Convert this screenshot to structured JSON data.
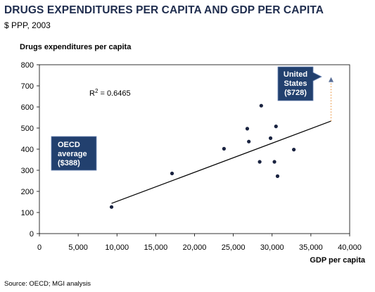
{
  "title": "DRUGS EXPENDITURES PER CAPITA AND GDP PER CAPITA",
  "subtitle": "$ PPP, 2003",
  "source": "Source: OECD; MGI analysis",
  "colors": {
    "title": "#1f2d4e",
    "callout": "#22406e",
    "callout_text": "#ffffff",
    "points": "#1a2340",
    "arrow": "#f0b070"
  },
  "chart_data": {
    "type": "scatter",
    "xlabel": "GDP per capita",
    "ylabel": "Drugs expenditures per capita",
    "xlim": [
      0,
      40000
    ],
    "ylim": [
      0,
      800
    ],
    "x_ticks": [
      0,
      5000,
      10000,
      15000,
      20000,
      25000,
      30000,
      35000,
      40000
    ],
    "x_tick_labels": [
      "0",
      "5,000",
      "10,000",
      "15,000",
      "20,000",
      "25,000",
      "30,000",
      "35,000",
      "40,000"
    ],
    "y_ticks": [
      0,
      100,
      200,
      300,
      400,
      500,
      600,
      700,
      800
    ],
    "y_tick_labels": [
      "0",
      "100",
      "200",
      "300",
      "400",
      "500",
      "600",
      "700",
      "800"
    ],
    "grid": false,
    "points": [
      {
        "x": 9300,
        "y": 126
      },
      {
        "x": 17100,
        "y": 285
      },
      {
        "x": 23800,
        "y": 402
      },
      {
        "x": 26800,
        "y": 497
      },
      {
        "x": 27000,
        "y": 436
      },
      {
        "x": 28400,
        "y": 340
      },
      {
        "x": 28600,
        "y": 606
      },
      {
        "x": 29800,
        "y": 452
      },
      {
        "x": 30300,
        "y": 340
      },
      {
        "x": 30500,
        "y": 508
      },
      {
        "x": 30700,
        "y": 272
      },
      {
        "x": 32800,
        "y": 398
      }
    ],
    "trendline": {
      "x": [
        9300,
        37600
      ],
      "y": [
        143,
        533
      ]
    },
    "r_squared_label": "R",
    "r_squared_sup": "2",
    "r_squared_value": " = 0.6465",
    "highlight": {
      "x": 37600,
      "y": 728,
      "label_lines": [
        "United",
        "States",
        "($728)"
      ]
    },
    "oecd_label_lines": [
      "OECD",
      "average",
      "($388)"
    ]
  }
}
